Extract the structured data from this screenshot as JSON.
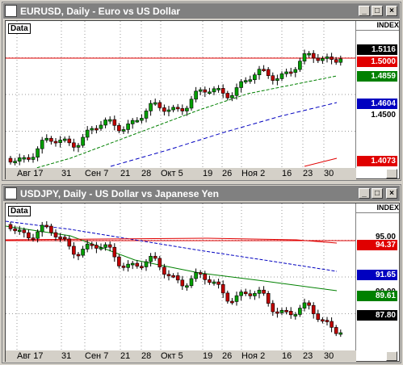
{
  "win1": {
    "title": "EURUSD, Daily - Euro vs US Dollar",
    "index": "INDEX",
    "data_label": "Data",
    "price_tags": [
      {
        "text": "1.5116",
        "bg": "#000000",
        "fg": "#ffffff"
      },
      {
        "text": "1.5000",
        "bg": "#e00000",
        "fg": "#ffffff"
      },
      {
        "text": "1.4859",
        "bg": "#008000",
        "fg": "#ffffff"
      },
      {
        "text": "1.4604",
        "bg": "#0000c0",
        "fg": "#ffffff"
      },
      {
        "text": "1.4073",
        "bg": "#e00000",
        "fg": "#ffffff"
      }
    ],
    "plain_labels": [
      "1.4500"
    ],
    "xlabels": [
      "Авг 17",
      "31",
      "Сен 7",
      "21",
      "28",
      "Окт 5",
      "19",
      "26",
      "Ноя 2",
      "16",
      "23",
      "30"
    ]
  },
  "win2": {
    "title": "USDJPY, Daily - US Dollar vs Japanese Yen",
    "index": "INDEX",
    "data_label": "Data",
    "price_tags": [
      {
        "text": "94.37",
        "bg": "#e00000",
        "fg": "#ffffff"
      },
      {
        "text": "91.65",
        "bg": "#0000c0",
        "fg": "#ffffff"
      },
      {
        "text": "89.61",
        "bg": "#008000",
        "fg": "#ffffff"
      },
      {
        "text": "87.80",
        "bg": "#000000",
        "fg": "#ffffff"
      }
    ],
    "plain_labels": [
      "95.00",
      "90.00"
    ],
    "xlabels": [
      "Авг 17",
      "31",
      "Сен 7",
      "21",
      "28",
      "Окт 5",
      "19",
      "26",
      "Ноя 2",
      "16",
      "23",
      "30"
    ]
  },
  "buttons": {
    "minimize": "_",
    "maximize": "□",
    "close": "×"
  },
  "colors": {
    "sma_short": "#008000",
    "sma_mid": "#0000c0",
    "sma_long": "#e00000",
    "candle_up": "#00a000",
    "candle_down": "#c00000"
  }
}
